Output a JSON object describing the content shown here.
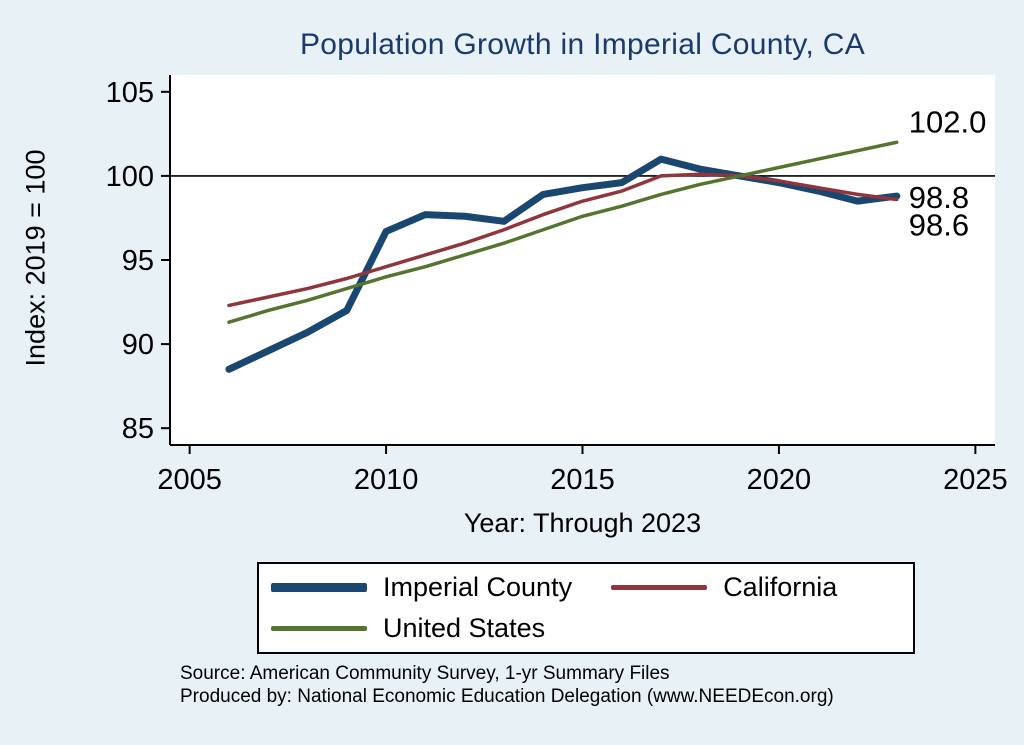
{
  "figure": {
    "title": "Population Growth in Imperial County, CA",
    "x_axis_label": "Year: Through 2023",
    "y_axis_label": "Index: 2019 = 100",
    "source_line_1": "Source: American Community Survey, 1-yr Summary Files",
    "source_line_2": "Produced by: National Economic Education Delegation (www.NEEDEcon.org)"
  },
  "colors": {
    "background": "#e8f1f6",
    "plot_background": "#ffffff",
    "title": "#1a3a6e",
    "axis": "#000000",
    "imperial_county": "#1a476f",
    "california": "#90353b",
    "united_states": "#55752f"
  },
  "chart_data": {
    "type": "line",
    "title": "Population Growth in Imperial County, CA",
    "xlabel": "Year: Through 2023",
    "ylabel": "Index: 2019 = 100",
    "xlim": [
      2004.5,
      2025.5
    ],
    "ylim": [
      84,
      106
    ],
    "xticks": [
      2005,
      2010,
      2015,
      2020,
      2025
    ],
    "yticks": [
      85,
      90,
      95,
      100,
      105
    ],
    "reference_line": 100,
    "grid": false,
    "legend_position": "bottom",
    "x": [
      2006,
      2007,
      2008,
      2009,
      2010,
      2011,
      2012,
      2013,
      2014,
      2015,
      2016,
      2017,
      2018,
      2019,
      2020,
      2021,
      2022,
      2023
    ],
    "series": [
      {
        "name": "Imperial County",
        "color": "#1a476f",
        "width": 7,
        "end_label": "98.8",
        "values": [
          88.5,
          89.6,
          90.7,
          92.0,
          96.7,
          97.7,
          97.6,
          97.3,
          98.9,
          99.3,
          99.6,
          101.0,
          100.4,
          100.0,
          99.6,
          99.1,
          98.5,
          98.8
        ]
      },
      {
        "name": "California",
        "color": "#90353b",
        "width": 3.5,
        "end_label": "98.6",
        "values": [
          92.3,
          92.8,
          93.3,
          93.9,
          94.6,
          95.3,
          96.0,
          96.8,
          97.7,
          98.5,
          99.1,
          100.0,
          100.1,
          100.0,
          99.7,
          99.3,
          98.9,
          98.6
        ]
      },
      {
        "name": "United States",
        "color": "#55752f",
        "width": 3.5,
        "end_label": "102.0",
        "values": [
          91.3,
          92.0,
          92.6,
          93.3,
          94.0,
          94.6,
          95.3,
          96.0,
          96.8,
          97.6,
          98.2,
          98.9,
          99.5,
          100.0,
          100.5,
          101.0,
          101.5,
          102.0
        ]
      }
    ]
  }
}
